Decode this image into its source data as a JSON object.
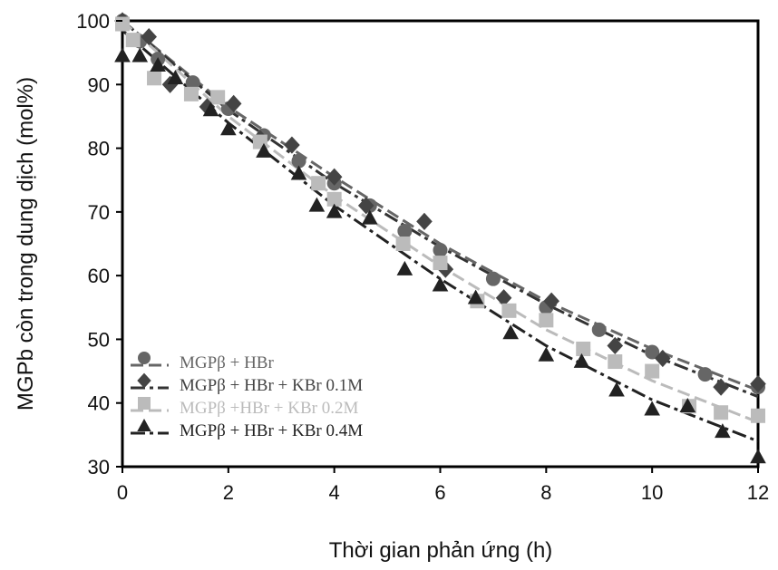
{
  "chart_data": {
    "type": "scatter",
    "title": "",
    "xlabel": "Thời gian phản ứng (h)",
    "ylabel": "MGPb còn trong dung dịch (mol%)",
    "xlim": [
      0,
      12
    ],
    "ylim": [
      30,
      100
    ],
    "xticks": [
      "0",
      "2",
      "4",
      "6",
      "8",
      "10",
      "12"
    ],
    "yticks": [
      "30",
      "40",
      "50",
      "60",
      "70",
      "80",
      "90",
      "100"
    ],
    "legend_position": "bottom-left",
    "series": [
      {
        "name": "MGPβ + HBr",
        "marker": "circle",
        "color": "#666666",
        "line_color": "#666666",
        "line_style": "dashed",
        "x": [
          0,
          0.33,
          0.67,
          1.33,
          2,
          2.67,
          3.33,
          4,
          4.67,
          5.33,
          6,
          7,
          8,
          9,
          10,
          11,
          12
        ],
        "y": [
          100,
          96.8,
          94,
          90.3,
          86.2,
          82,
          78,
          74.5,
          71,
          67,
          64,
          59.5,
          55,
          51.5,
          48,
          44.5,
          42.5
        ],
        "trend": [
          [
            0,
            100
          ],
          [
            2,
            86.5
          ],
          [
            4,
            75.5
          ],
          [
            6,
            65
          ],
          [
            8,
            56
          ],
          [
            10,
            48.5
          ],
          [
            12,
            42
          ]
        ]
      },
      {
        "name": "MGPβ + HBr + KBr 0.1M",
        "marker": "diamond",
        "color": "#444444",
        "line_color": "#333333",
        "line_style": "dashdot",
        "x": [
          0,
          0.5,
          0.9,
          1.6,
          2.1,
          2.6,
          3.2,
          4,
          4.6,
          5.7,
          6.1,
          7.2,
          8.1,
          9.3,
          10.2,
          11.3,
          12
        ],
        "y": [
          100,
          97.5,
          90,
          86.5,
          87,
          81.5,
          80.5,
          75.5,
          71,
          68.5,
          61,
          56.5,
          56,
          49,
          47,
          42.5,
          43
        ],
        "trend": [
          [
            0,
            100
          ],
          [
            2,
            86
          ],
          [
            4,
            74.5
          ],
          [
            6,
            64.5
          ],
          [
            8,
            55.5
          ],
          [
            10,
            47.5
          ],
          [
            12,
            41
          ]
        ]
      },
      {
        "name": "MGPβ +HBr + KBr 0.2M",
        "marker": "square",
        "color": "#bbbbbb",
        "line_color": "#bbbbbb",
        "line_style": "dashed",
        "x": [
          0,
          0.2,
          0.6,
          1.3,
          1.8,
          2.6,
          3.7,
          4,
          5.3,
          6,
          6.7,
          7.3,
          8,
          8.7,
          9.3,
          10,
          10.7,
          11.3,
          12
        ],
        "y": [
          99.5,
          97,
          91,
          88.5,
          88,
          81,
          74.5,
          72,
          65,
          62,
          56,
          54.5,
          53,
          48.5,
          46.5,
          45,
          39.5,
          38.5,
          38
        ],
        "trend": [
          [
            0,
            100
          ],
          [
            2,
            85
          ],
          [
            4,
            72.5
          ],
          [
            6,
            61.5
          ],
          [
            8,
            51.5
          ],
          [
            10,
            43.5
          ],
          [
            12,
            37
          ]
        ]
      },
      {
        "name": "MGPβ + HBr + KBr 0.4M",
        "marker": "triangle",
        "color": "#222222",
        "line_color": "#222222",
        "line_style": "dashdot",
        "x": [
          0,
          0.33,
          0.67,
          1,
          1.67,
          2,
          2.67,
          3.33,
          3.67,
          4,
          4.67,
          5.33,
          6,
          6.67,
          7.33,
          8,
          8.67,
          9.33,
          10,
          10.67,
          11.33,
          12
        ],
        "y": [
          94.5,
          94.5,
          93,
          91,
          86,
          83,
          79.5,
          76,
          71,
          70,
          69,
          61,
          58.5,
          56.5,
          51,
          47.5,
          46.5,
          42,
          39,
          39.5,
          35.5,
          31.5
        ],
        "trend": [
          [
            0,
            98.5
          ],
          [
            2,
            84
          ],
          [
            4,
            71
          ],
          [
            6,
            59.5
          ],
          [
            8,
            49
          ],
          [
            10,
            40.5
          ],
          [
            12,
            34
          ]
        ]
      }
    ]
  }
}
